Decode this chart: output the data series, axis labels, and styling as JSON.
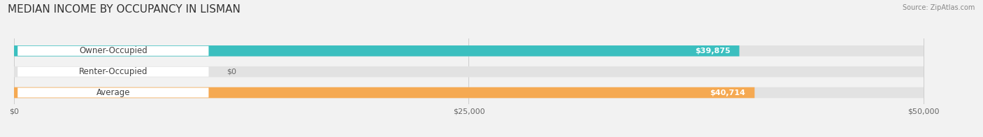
{
  "title": "MEDIAN INCOME BY OCCUPANCY IN LISMAN",
  "source": "Source: ZipAtlas.com",
  "categories": [
    "Owner-Occupied",
    "Renter-Occupied",
    "Average"
  ],
  "values": [
    39875,
    0,
    40714
  ],
  "labels": [
    "$39,875",
    "$0",
    "$40,714"
  ],
  "bar_colors": [
    "#3bbfbf",
    "#b09fcc",
    "#f5a952"
  ],
  "background_color": "#f2f2f2",
  "bar_bg_color": "#e2e2e2",
  "label_bg_color": "#ffffff",
  "xlim": [
    0,
    50000
  ],
  "xticks": [
    0,
    25000,
    50000
  ],
  "xtick_labels": [
    "$0",
    "$25,000",
    "$50,000"
  ],
  "title_fontsize": 11,
  "label_fontsize": 8.5,
  "value_fontsize": 8,
  "bar_height": 0.52,
  "figsize": [
    14.06,
    1.96
  ],
  "dpi": 100
}
